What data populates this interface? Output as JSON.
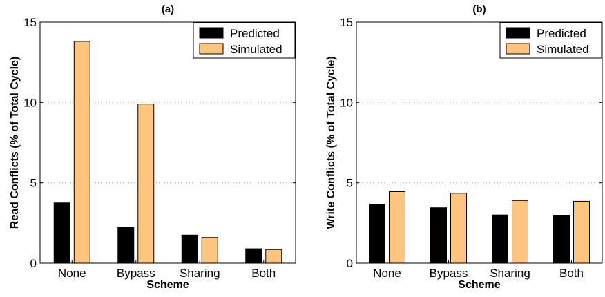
{
  "chart_data": [
    {
      "type": "bar",
      "title": "(a)",
      "xlabel": "Scheme",
      "ylabel": "Read Conflicts (% of Total Cycle)",
      "categories": [
        "None",
        "Bypass",
        "Sharing",
        "Both"
      ],
      "ylim": [
        0,
        15
      ],
      "yticks": [
        0,
        5,
        10,
        15
      ],
      "grid": "horizontal dotted",
      "legend_position": "top-right",
      "series": [
        {
          "name": "Predicted",
          "color": "#000000",
          "values": [
            3.75,
            2.25,
            1.75,
            0.9
          ]
        },
        {
          "name": "Simulated",
          "color": "#FFC57E",
          "values": [
            13.8,
            9.9,
            1.6,
            0.85
          ]
        }
      ]
    },
    {
      "type": "bar",
      "title": "(b)",
      "xlabel": "Scheme",
      "ylabel": "Write Conflicts (% of Total Cycle)",
      "categories": [
        "None",
        "Bypass",
        "Sharing",
        "Both"
      ],
      "ylim": [
        0,
        15
      ],
      "yticks": [
        0,
        5,
        10,
        15
      ],
      "grid": "horizontal dotted",
      "legend_position": "top-right",
      "series": [
        {
          "name": "Predicted",
          "color": "#000000",
          "values": [
            3.65,
            3.45,
            3.0,
            2.95
          ]
        },
        {
          "name": "Simulated",
          "color": "#FFC57E",
          "values": [
            4.45,
            4.35,
            3.9,
            3.85
          ]
        }
      ]
    }
  ]
}
